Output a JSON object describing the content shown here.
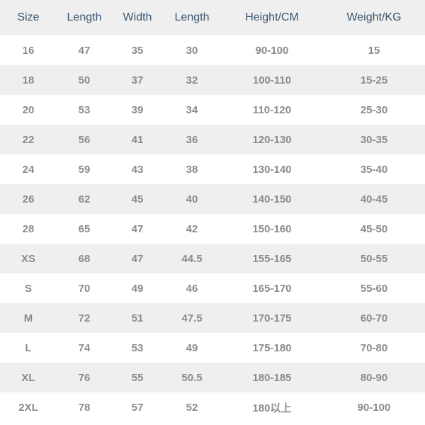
{
  "type": "table",
  "colors": {
    "background": "#ffffff",
    "row_alt": "#eeefee",
    "header_text": "#3d566e",
    "data_text": "#8b8b8b"
  },
  "fonts": {
    "header_size": 16,
    "header_weight": 400,
    "data_size": 15,
    "data_weight": 700
  },
  "columns": [
    "Size",
    "Length",
    "Width",
    "Length",
    "Height/CM",
    "Weight/KG"
  ],
  "rows": [
    [
      "16",
      "47",
      "35",
      "30",
      "90-100",
      "15"
    ],
    [
      "18",
      "50",
      "37",
      "32",
      "100-110",
      "15-25"
    ],
    [
      "20",
      "53",
      "39",
      "34",
      "110-120",
      "25-30"
    ],
    [
      "22",
      "56",
      "41",
      "36",
      "120-130",
      "30-35"
    ],
    [
      "24",
      "59",
      "43",
      "38",
      "130-140",
      "35-40"
    ],
    [
      "26",
      "62",
      "45",
      "40",
      "140-150",
      "40-45"
    ],
    [
      "28",
      "65",
      "47",
      "42",
      "150-160",
      "45-50"
    ],
    [
      "XS",
      "68",
      "47",
      "44.5",
      "155-165",
      "50-55"
    ],
    [
      "S",
      "70",
      "49",
      "46",
      "165-170",
      "55-60"
    ],
    [
      "M",
      "72",
      "51",
      "47.5",
      "170-175",
      "60-70"
    ],
    [
      "L",
      "74",
      "53",
      "49",
      "175-180",
      "70-80"
    ],
    [
      "XL",
      "76",
      "55",
      "50.5",
      "180-185",
      "80-90"
    ],
    [
      "2XL",
      "78",
      "57",
      "52",
      "180以上",
      "90-100"
    ]
  ]
}
